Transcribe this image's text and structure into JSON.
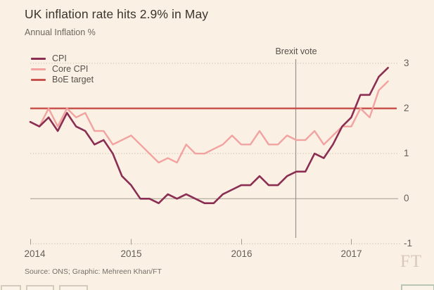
{
  "header": {
    "title": "UK inflation rate hits 2.9% in May",
    "subtitle": "Annual Inflation %"
  },
  "legend": [
    {
      "label": "CPI",
      "color": "#8b2e53"
    },
    {
      "label": "Core CPI",
      "color": "#f2a2a0"
    },
    {
      "label": "BoE target",
      "color": "#c8524d"
    }
  ],
  "annotation": {
    "brexit_label": "Brexit vote"
  },
  "footer": {
    "source": "Source: ONS; Graphic: Mehreen Khan/FT",
    "logo": "FT"
  },
  "colors": {
    "background": "#faf0e3",
    "cpi_line": "#8b2e53",
    "core_cpi_line": "#f2a2a0",
    "boe_target_line": "#c8524d",
    "gridline": "#c6bbac",
    "zero_line": "#a49b8f",
    "brexit_line": "#9b948e"
  },
  "chart_data": {
    "type": "line",
    "title": "UK inflation rate hits 2.9% in May",
    "ylabel": "Annual Inflation %",
    "x_start": "2014-02",
    "x_end": "2017-05",
    "frequency": "monthly",
    "ylim": [
      -1,
      3
    ],
    "yticks": [
      3,
      2,
      1,
      0,
      -1
    ],
    "xticks": [
      "2014",
      "2015",
      "2016",
      "2017"
    ],
    "grid": "horizontal-dotted",
    "legend_position": "top-left-inside",
    "series": [
      {
        "name": "CPI",
        "color": "#8b2e53",
        "values": [
          1.7,
          1.6,
          1.8,
          1.5,
          1.9,
          1.6,
          1.5,
          1.2,
          1.3,
          1.0,
          0.5,
          0.3,
          0.0,
          0.0,
          -0.1,
          0.1,
          0.0,
          0.1,
          0.0,
          -0.1,
          -0.1,
          0.1,
          0.2,
          0.3,
          0.3,
          0.5,
          0.3,
          0.3,
          0.5,
          0.6,
          0.6,
          1.0,
          0.9,
          1.2,
          1.6,
          1.8,
          2.3,
          2.3,
          2.7,
          2.9
        ]
      },
      {
        "name": "Core CPI",
        "color": "#f2a2a0",
        "values": [
          1.7,
          1.6,
          2.0,
          1.6,
          2.0,
          1.8,
          1.9,
          1.5,
          1.5,
          1.2,
          1.3,
          1.4,
          1.2,
          1.0,
          0.8,
          0.9,
          0.8,
          1.2,
          1.0,
          1.0,
          1.1,
          1.2,
          1.4,
          1.2,
          1.2,
          1.5,
          1.2,
          1.2,
          1.4,
          1.3,
          1.3,
          1.5,
          1.2,
          1.4,
          1.6,
          1.6,
          2.0,
          1.8,
          2.4,
          2.6
        ]
      },
      {
        "name": "BoE target",
        "color": "#c8524d",
        "type": "constant",
        "value": 2
      }
    ],
    "annotations": [
      {
        "type": "vline",
        "label": "Brexit vote",
        "x": "2016-06"
      }
    ]
  }
}
